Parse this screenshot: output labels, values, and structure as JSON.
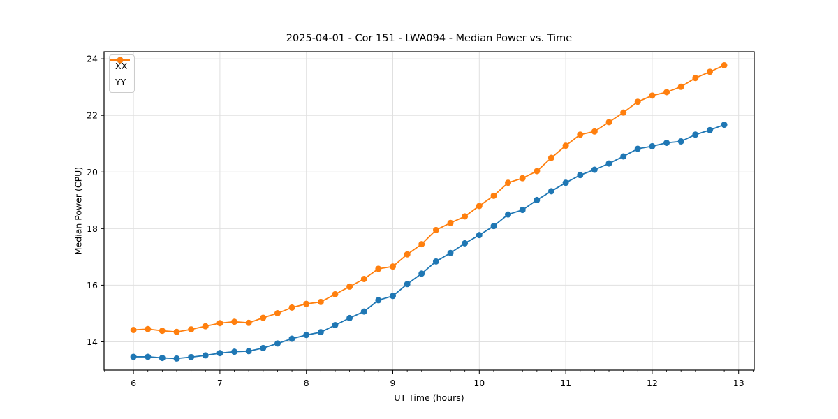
{
  "chart_data": {
    "type": "line",
    "title": "2025-04-01 - Cor 151 - LWA094 - Median Power vs. Time",
    "xlabel": "UT Time (hours)",
    "ylabel": "Median Power (CPU)",
    "xlim": [
      5.66,
      13.18
    ],
    "ylim": [
      13.0,
      24.25
    ],
    "xticks": [
      6,
      7,
      8,
      9,
      10,
      11,
      12,
      13
    ],
    "yticks": [
      14,
      16,
      18,
      20,
      22,
      24
    ],
    "minor_x_step": 0.16667,
    "grid": true,
    "legend_position": "upper-left",
    "x": [
      6.0,
      6.167,
      6.333,
      6.5,
      6.667,
      6.833,
      7.0,
      7.167,
      7.333,
      7.5,
      7.667,
      7.833,
      8.0,
      8.167,
      8.333,
      8.5,
      8.667,
      8.833,
      9.0,
      9.167,
      9.333,
      9.5,
      9.667,
      9.833,
      10.0,
      10.167,
      10.333,
      10.5,
      10.667,
      10.833,
      11.0,
      11.167,
      11.333,
      11.5,
      11.667,
      11.833,
      12.0,
      12.167,
      12.333,
      12.5,
      12.667,
      12.833
    ],
    "series": [
      {
        "name": "XX",
        "color": "#1f77b4",
        "values": [
          13.47,
          13.47,
          13.43,
          13.41,
          13.46,
          13.52,
          13.6,
          13.65,
          13.67,
          13.78,
          13.94,
          14.11,
          14.24,
          14.34,
          14.59,
          14.84,
          15.07,
          15.47,
          15.62,
          16.04,
          16.41,
          16.84,
          17.14,
          17.48,
          17.77,
          18.09,
          18.5,
          18.66,
          19.01,
          19.32,
          19.62,
          19.89,
          20.08,
          20.3,
          20.55,
          20.82,
          20.91,
          21.03,
          21.08,
          21.32,
          21.48,
          21.67
        ]
      },
      {
        "name": "YY",
        "color": "#ff7f0e",
        "values": [
          14.42,
          14.45,
          14.39,
          14.35,
          14.44,
          14.55,
          14.66,
          14.71,
          14.67,
          14.85,
          15.01,
          15.21,
          15.34,
          15.41,
          15.68,
          15.95,
          16.22,
          16.58,
          16.66,
          17.09,
          17.45,
          17.95,
          18.2,
          18.43,
          18.8,
          19.16,
          19.62,
          19.78,
          20.03,
          20.5,
          20.93,
          21.32,
          21.43,
          21.76,
          22.1,
          22.48,
          22.7,
          22.82,
          23.01,
          23.32,
          23.54,
          23.77
        ]
      }
    ],
    "colors": {
      "background": "#ffffff",
      "grid": "#e0e0e0",
      "axis": "#000000",
      "text": "#000000",
      "legend_border": "#cccccc"
    }
  }
}
